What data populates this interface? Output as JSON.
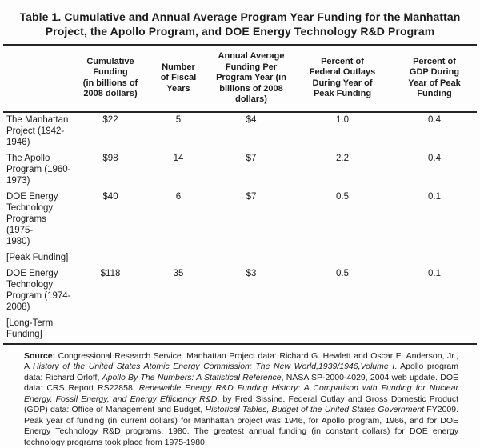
{
  "title": {
    "text": "Table 1. Cumulative and Annual Average Program Year Funding for the Manhattan\nProject, the Apollo Program, and DOE Energy Technology R&D Program"
  },
  "table": {
    "columns": [
      {
        "label": ""
      },
      {
        "label": "Cumulative\nFunding\n(in billions of\n2008 dollars)"
      },
      {
        "label": "Number\nof Fiscal\nYears"
      },
      {
        "label": "Annual Average\nFunding Per\nProgram Year (in\nbillions of 2008\ndollars)"
      },
      {
        "label": "Percent of\nFederal Outlays\nDuring Year of\nPeak Funding"
      },
      {
        "label": "Percent of\nGDP During\nYear of Peak\nFunding"
      }
    ],
    "rows": [
      {
        "cells": [
          "The Manhattan\nProject (1942-\n1946)",
          "$22",
          "5",
          "$4",
          "1.0",
          "0.4"
        ]
      },
      {
        "cells": [
          "The Apollo\nProgram (1960-\n1973)",
          "$98",
          "14",
          "$7",
          "2.2",
          "0.4"
        ]
      },
      {
        "cells": [
          "DOE Energy\nTechnology\nPrograms (1975-\n1980)",
          "$40",
          "6",
          "$7",
          "0.5",
          "0.1"
        ]
      },
      {
        "cells": [
          "[Peak Funding]",
          "",
          "",
          "",
          "",
          ""
        ]
      },
      {
        "cells": [
          "DOE Energy\nTechnology\nProgram (1974-\n2008)",
          "$118",
          "35",
          "$3",
          "0.5",
          "0.1"
        ]
      },
      {
        "cells": [
          "[Long-Term\nFunding]",
          "",
          "",
          "",
          "",
          ""
        ]
      }
    ]
  },
  "source_note": {
    "segments": [
      {
        "text": "Source:",
        "style": "bold"
      },
      {
        "text": " Congressional Research Service. Manhattan Project data: Richard G. Hewlett and Oscar E. Anderson, Jr., A ",
        "style": "normal"
      },
      {
        "text": "History of the United States Atomic Energy Commission: The New World,1939/1946,Volume I",
        "style": "italic"
      },
      {
        "text": ". Apollo program data: Richard Orloff, ",
        "style": "normal"
      },
      {
        "text": "Apollo By The Numbers: A Statistical Reference",
        "style": "italic"
      },
      {
        "text": ", NASA SP-2000-4029, 2004 web update. DOE data: CRS Report RS22858, ",
        "style": "normal"
      },
      {
        "text": "Renewable Energy R&D Funding History: A Comparison with Funding for Nuclear Energy, Fossil Energy, and Energy Efficiency R&D",
        "style": "italic"
      },
      {
        "text": ", by Fred Sissine. Federal Outlay and Gross Domestic Product (GDP) data: Office of Management and Budget, ",
        "style": "normal"
      },
      {
        "text": "Historical Tables, Budget of the United States Government",
        "style": "italic"
      },
      {
        "text": " FY2009. Peak year of funding (in current dollars) for Manhattan project was 1946, for Apollo program, 1966, and for DOE Energy Technology R&D programs, 1980. The greatest annual funding (in constant dollars) for DOE energy technology programs took place from 1975-1980.",
        "style": "normal"
      }
    ]
  }
}
